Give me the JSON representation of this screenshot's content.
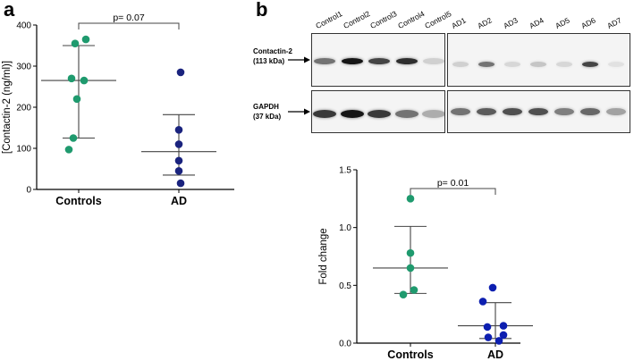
{
  "panel_a": {
    "letter": "a"
  },
  "panel_b": {
    "letter": "b"
  },
  "blot": {
    "lanes_left": [
      "Control1",
      "Control2",
      "Control3",
      "Control4",
      "Control5"
    ],
    "lanes_right": [
      "AD1",
      "AD2",
      "AD3",
      "AD4",
      "AD5",
      "AD6",
      "AD7"
    ],
    "row1_name": "Contactin-2",
    "row1_kda": "(113 kDa)",
    "row2_name": "GAPDH",
    "row2_kda": "(37 kDa)",
    "contactin_intensity_left": [
      0.55,
      0.95,
      0.75,
      0.85,
      0.15
    ],
    "contactin_intensity_right": [
      0.15,
      0.55,
      0.12,
      0.2,
      0.12,
      0.75,
      0.08
    ],
    "gapdh_intensity_left": [
      0.8,
      0.95,
      0.8,
      0.55,
      0.3
    ],
    "gapdh_intensity_right": [
      0.55,
      0.65,
      0.7,
      0.7,
      0.5,
      0.6,
      0.35
    ]
  },
  "chart_data": [
    {
      "type": "scatter",
      "title": "",
      "xlabel": "",
      "ylabel": "[Contactin-2 (ng/ml)]",
      "categories": [
        "Controls",
        "AD"
      ],
      "ylim": [
        0,
        400
      ],
      "yticks": [
        0,
        100,
        200,
        300,
        400
      ],
      "series": [
        {
          "values": [
            365,
            355,
            270,
            265,
            220,
            125,
            97
          ],
          "color": "#1f9a6e"
        },
        {
          "values": [
            285,
            145,
            110,
            70,
            45,
            15
          ],
          "color": "#1a237e"
        }
      ],
      "summary": [
        {
          "mean": 265,
          "lower": 125,
          "upper": 350
        },
        {
          "mean": 92,
          "lower": 35,
          "upper": 182
        }
      ],
      "annotation": "p= 0.07"
    },
    {
      "type": "scatter",
      "title": "",
      "xlabel": "",
      "ylabel": "Fold change",
      "categories": [
        "Controls",
        "AD"
      ],
      "ylim": [
        0,
        1.5
      ],
      "yticks": [
        "0.0",
        "0.5",
        "1.0",
        "1.5"
      ],
      "series": [
        {
          "values": [
            1.25,
            0.78,
            0.65,
            0.46,
            0.42
          ],
          "color": "#1f9a6e"
        },
        {
          "values": [
            0.48,
            0.36,
            0.15,
            0.14,
            0.07,
            0.05,
            0.02
          ],
          "color": "#0d1fb0"
        }
      ],
      "summary": [
        {
          "mean": 0.65,
          "lower": 0.43,
          "upper": 1.01
        },
        {
          "mean": 0.15,
          "lower": 0.04,
          "upper": 0.35
        }
      ],
      "annotation": "p= 0.01"
    }
  ]
}
